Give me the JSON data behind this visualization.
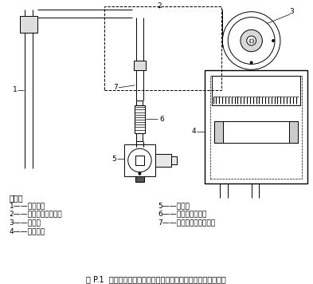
{
  "title": "图 P.1  与风机连接之前的一段燃气管路中使用非金属材料燃气管",
  "legend_title": "说明：",
  "legend_items_left": [
    "1——空气管；",
    "2——非金属材料管路；",
    "3——风机；",
    "4——燃烧室；"
  ],
  "legend_items_right": [
    "5——燃气阀",
    "6——金属材料燃气管",
    "7——非金属材料燃气管。"
  ],
  "line_color": "#000000",
  "bg_color": "#ffffff",
  "label_1": "1",
  "label_2": "2",
  "label_3": "3",
  "label_4": "4",
  "label_5": "5",
  "label_6": "6",
  "label_7": "7"
}
